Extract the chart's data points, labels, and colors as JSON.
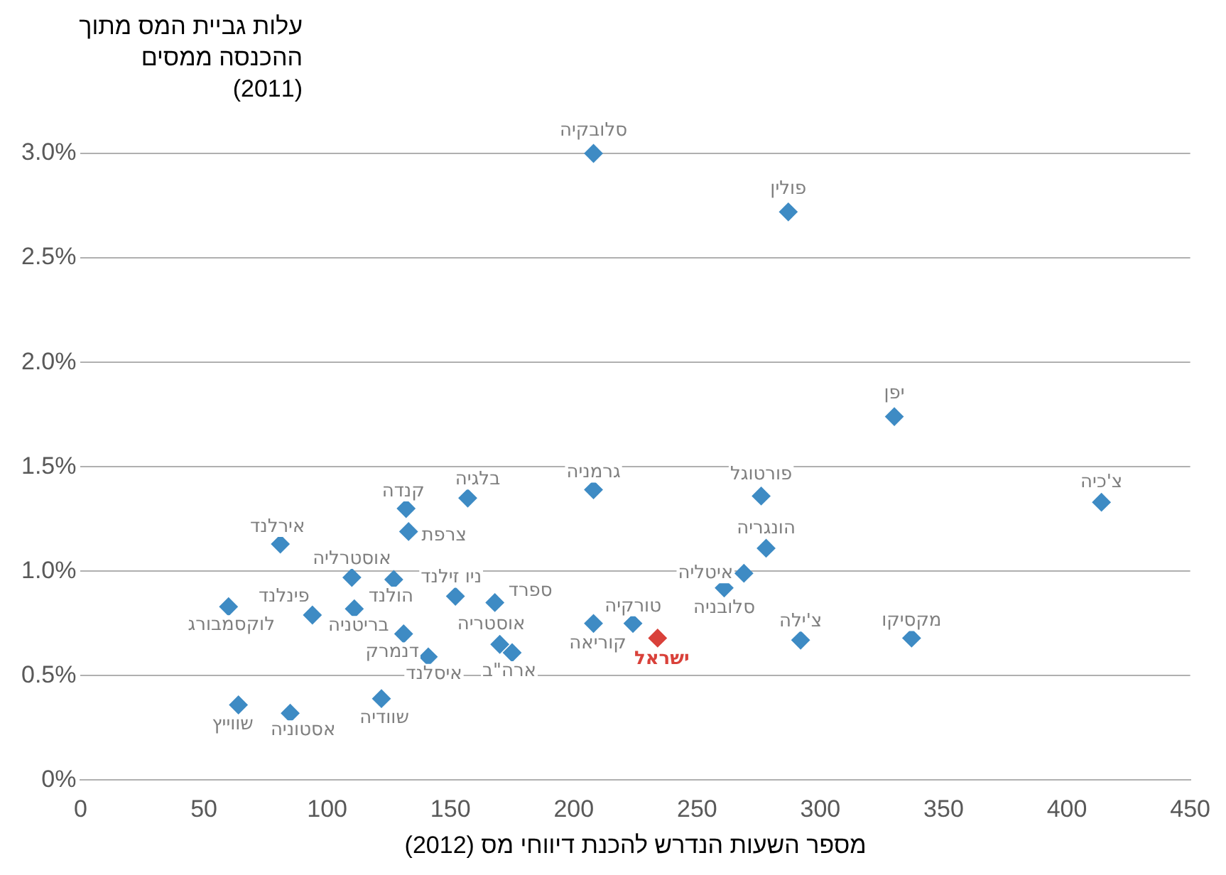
{
  "chart_data": {
    "type": "scatter",
    "xlabel": "מספר השעות הנדרש להכנת דיווחי מס (2012)",
    "ylabel": "עלות גביית המס מתוך\nההכנסה ממסים\n(2011)",
    "xlim": [
      0,
      450
    ],
    "xticks": [
      0,
      50,
      100,
      150,
      200,
      250,
      300,
      350,
      400,
      450
    ],
    "ylim": [
      0,
      3.0
    ],
    "yticks": [
      {
        "value": 0,
        "label": "0%"
      },
      {
        "value": 0.5,
        "label": "0.5%"
      },
      {
        "value": 1.0,
        "label": "1.0%"
      },
      {
        "value": 1.5,
        "label": "1.5%"
      },
      {
        "value": 2.0,
        "label": "2.0%"
      },
      {
        "value": 2.5,
        "label": "2.5%"
      },
      {
        "value": 3.0,
        "label": "3.0%"
      }
    ],
    "grid": "y",
    "marker": "diamond",
    "legend": false,
    "series": [
      {
        "color": "#3e8bc4",
        "x": [
          208,
          287,
          330,
          414,
          276,
          208,
          278,
          269,
          261,
          157,
          132,
          133,
          81,
          110,
          127,
          152,
          168,
          111,
          94,
          60,
          131,
          141,
          170,
          175,
          208,
          224,
          292,
          337,
          64,
          85,
          122
        ],
        "values": [
          3.0,
          2.72,
          1.74,
          1.33,
          1.36,
          1.39,
          1.11,
          0.99,
          0.92,
          1.35,
          1.3,
          1.19,
          1.13,
          0.97,
          0.96,
          0.88,
          0.85,
          0.82,
          0.79,
          0.83,
          0.7,
          0.59,
          0.65,
          0.61,
          0.75,
          0.75,
          0.67,
          0.68,
          0.36,
          0.32,
          0.39
        ]
      },
      {
        "color": "#d9413a",
        "x": [
          234
        ],
        "values": [
          0.68
        ]
      }
    ],
    "annotations": [
      {
        "text": "סלובקיה",
        "x": 208,
        "y": 3.0
      },
      {
        "text": "פולין",
        "x": 287,
        "y": 2.72
      },
      {
        "text": "יפן",
        "x": 330,
        "y": 1.74
      },
      {
        "text": "צ'כיה",
        "x": 414,
        "y": 1.33
      },
      {
        "text": "פורטוגל",
        "x": 276,
        "y": 1.36
      },
      {
        "text": "גרמניה",
        "x": 208,
        "y": 1.39
      },
      {
        "text": "הונגריה",
        "x": 278,
        "y": 1.11
      },
      {
        "text": "איטליה",
        "x": 269,
        "y": 0.99
      },
      {
        "text": "סלובניה",
        "x": 261,
        "y": 0.92
      },
      {
        "text": "בלגיה",
        "x": 157,
        "y": 1.35
      },
      {
        "text": "קנדה",
        "x": 132,
        "y": 1.3
      },
      {
        "text": "צרפת",
        "x": 133,
        "y": 1.19
      },
      {
        "text": "אירלנד",
        "x": 81,
        "y": 1.13
      },
      {
        "text": "אוסטרליה",
        "x": 110,
        "y": 0.97
      },
      {
        "text": "הולנד",
        "x": 127,
        "y": 0.96
      },
      {
        "text": "ניו זילנד",
        "x": 152,
        "y": 0.88
      },
      {
        "text": "ספרד",
        "x": 168,
        "y": 0.85
      },
      {
        "text": "בריטניה",
        "x": 111,
        "y": 0.82
      },
      {
        "text": "פינלנד",
        "x": 94,
        "y": 0.79
      },
      {
        "text": "לוקסמבורג",
        "x": 60,
        "y": 0.83
      },
      {
        "text": "דנמרק",
        "x": 131,
        "y": 0.7
      },
      {
        "text": "איסלנד",
        "x": 141,
        "y": 0.59
      },
      {
        "text": "אוסטריה",
        "x": 170,
        "y": 0.65
      },
      {
        "text": "ארה\"ב",
        "x": 175,
        "y": 0.61
      },
      {
        "text": "קוריאה",
        "x": 208,
        "y": 0.75
      },
      {
        "text": "טורקיה",
        "x": 224,
        "y": 0.75
      },
      {
        "text": "צ'ילה",
        "x": 292,
        "y": 0.67
      },
      {
        "text": "מקסיקו",
        "x": 337,
        "y": 0.68
      },
      {
        "text": "שווייץ",
        "x": 64,
        "y": 0.36
      },
      {
        "text": "אסטוניה",
        "x": 85,
        "y": 0.32
      },
      {
        "text": "שוודיה",
        "x": 122,
        "y": 0.39
      },
      {
        "text": "ישראל",
        "x": 234,
        "y": 0.68
      }
    ]
  }
}
